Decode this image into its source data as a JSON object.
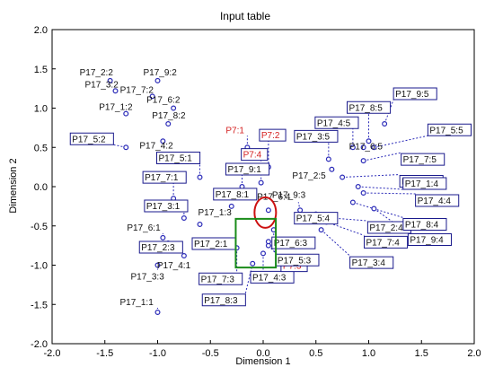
{
  "chart_data": {
    "type": "scatter",
    "title": "Input table",
    "xlabel": "Dimension 1",
    "ylabel": "Dimension 2",
    "xlim": [
      -2.0,
      2.0
    ],
    "ylim": [
      -2.0,
      2.0
    ],
    "xticks": [
      "-2.0",
      "-1.5",
      "-1.0",
      "-0.5",
      "0.0",
      "0.5",
      "1.0",
      "1.5",
      "2.0"
    ],
    "yticks": [
      "2.0",
      "1.5",
      "1.0",
      "0.5",
      "0.0",
      "-0.5",
      "-1.0",
      "-1.5",
      "-2.0"
    ],
    "grid": false,
    "colors": {
      "point": "#2b2bb8",
      "label_box": "#1a1a8c",
      "highlight_label": "#d42020",
      "leader": "#2b2bb8",
      "ellipse": "#cc1111",
      "rectangle": "#1a8c1a"
    },
    "points": [
      {
        "label": "P17_2:2",
        "x": -1.45,
        "y": 1.35,
        "boxed": false,
        "red": false
      },
      {
        "label": "P17_9:2",
        "x": -1.0,
        "y": 1.35,
        "boxed": false,
        "red": false
      },
      {
        "label": "P17_3:2",
        "x": -1.4,
        "y": 1.22,
        "boxed": false,
        "red": false
      },
      {
        "label": "P17_7:2",
        "x": -1.05,
        "y": 1.15,
        "boxed": false,
        "red": false
      },
      {
        "label": "P17_1:2",
        "x": -1.3,
        "y": 0.93,
        "boxed": false,
        "red": false
      },
      {
        "label": "P17_6:2",
        "x": -0.85,
        "y": 1.0,
        "boxed": false,
        "red": false
      },
      {
        "label": "P17_8:2",
        "x": -0.9,
        "y": 0.8,
        "boxed": false,
        "red": false
      },
      {
        "label": "P17_5:2",
        "x": -1.3,
        "y": 0.5,
        "boxed": true,
        "red": false
      },
      {
        "label": "P17_4:2",
        "x": -0.95,
        "y": 0.58,
        "boxed": false,
        "red": false
      },
      {
        "label": "P7:1",
        "x": -0.15,
        "y": 0.5,
        "boxed": false,
        "red": true
      },
      {
        "label": "P7:2",
        "x": 0.05,
        "y": 0.25,
        "boxed": true,
        "red": true
      },
      {
        "label": "P7:4",
        "x": -0.02,
        "y": 0.05,
        "boxed": true,
        "red": true
      },
      {
        "label": "P17_5:1",
        "x": -0.6,
        "y": 0.12,
        "boxed": true,
        "red": false
      },
      {
        "label": "P17_9:1",
        "x": -0.2,
        "y": 0.0,
        "boxed": true,
        "red": false
      },
      {
        "label": "P17_7:1",
        "x": -0.85,
        "y": -0.15,
        "boxed": true,
        "red": false
      },
      {
        "label": "P17_8:1",
        "x": -0.3,
        "y": -0.25,
        "boxed": true,
        "red": false
      },
      {
        "label": "P17_3:1",
        "x": -0.75,
        "y": -0.4,
        "boxed": true,
        "red": false
      },
      {
        "label": "P17_1:3",
        "x": -0.6,
        "y": -0.48,
        "boxed": false,
        "red": false
      },
      {
        "label": "P17_9:3",
        "x": 0.05,
        "y": -0.3,
        "boxed": false,
        "red": false
      },
      {
        "label": "P17_6:1",
        "x": -0.95,
        "y": -0.65,
        "boxed": false,
        "red": false
      },
      {
        "label": "P17_2:3",
        "x": -0.9,
        "y": -0.72,
        "boxed": true,
        "red": false
      },
      {
        "label": "P17_2:1",
        "x": -0.4,
        "y": -0.72,
        "boxed": true,
        "red": false
      },
      {
        "label": "P17_4:1",
        "x": -0.75,
        "y": -0.88,
        "boxed": false,
        "red": false
      },
      {
        "label": "P17_3:3",
        "x": -1.0,
        "y": -1.0,
        "boxed": false,
        "red": false
      },
      {
        "label": "P17_1:1",
        "x": -1.0,
        "y": -1.6,
        "boxed": false,
        "red": false
      },
      {
        "label": "P17_7:3",
        "x": -0.25,
        "y": -0.78,
        "boxed": true,
        "red": false
      },
      {
        "label": "P17_8:3",
        "x": -0.1,
        "y": -0.98,
        "boxed": true,
        "red": false
      },
      {
        "label": "P17_4:3",
        "x": 0.0,
        "y": -0.85,
        "boxed": true,
        "red": false
      },
      {
        "label": "P7:3",
        "x": 0.05,
        "y": -0.75,
        "boxed": true,
        "red": true
      },
      {
        "label": "P17_6:3",
        "x": 0.1,
        "y": -0.55,
        "boxed": true,
        "red": false
      },
      {
        "label": "P17_5:3",
        "x": 0.05,
        "y": -0.7,
        "boxed": true,
        "red": false
      },
      {
        "label": "P17_6:4",
        "x": 0.35,
        "y": -0.3,
        "boxed": false,
        "red": false
      },
      {
        "label": "P17_5:4",
        "x": 0.5,
        "y": -0.35,
        "boxed": true,
        "red": false
      },
      {
        "label": "P17_2:4",
        "x": 0.65,
        "y": -0.4,
        "boxed": true,
        "red": false
      },
      {
        "label": "P17_7:4",
        "x": 0.6,
        "y": -0.45,
        "boxed": true,
        "red": false
      },
      {
        "label": "P17_3:4",
        "x": 0.55,
        "y": -0.55,
        "boxed": true,
        "red": false
      },
      {
        "label": "P17_2:5",
        "x": 0.65,
        "y": 0.22,
        "boxed": false,
        "red": false
      },
      {
        "label": "P17_3:5",
        "x": 0.62,
        "y": 0.35,
        "boxed": true,
        "red": false
      },
      {
        "label": "P17_4:5",
        "x": 0.85,
        "y": 0.5,
        "boxed": true,
        "red": false
      },
      {
        "label": "P17_8:5",
        "x": 1.0,
        "y": 0.58,
        "boxed": true,
        "red": false
      },
      {
        "label": "P17_9:5",
        "x": 1.15,
        "y": 0.8,
        "boxed": true,
        "red": false
      },
      {
        "label": "P17_5:5",
        "x": 1.05,
        "y": 0.5,
        "boxed": true,
        "red": false
      },
      {
        "label": "P17_6:5",
        "x": 0.95,
        "y": 0.5,
        "boxed": false,
        "red": false
      },
      {
        "label": "P17_7:5",
        "x": 0.95,
        "y": 0.33,
        "boxed": true,
        "red": false
      },
      {
        "label": "P17_1:5",
        "x": 0.75,
        "y": 0.12,
        "boxed": true,
        "red": false
      },
      {
        "label": "P17_1:4",
        "x": 0.9,
        "y": 0.0,
        "boxed": true,
        "red": false
      },
      {
        "label": "P17_4:4",
        "x": 0.95,
        "y": -0.08,
        "boxed": true,
        "red": false
      },
      {
        "label": "P17_8:4",
        "x": 0.85,
        "y": -0.2,
        "boxed": true,
        "red": false
      },
      {
        "label": "P17_9:4",
        "x": 1.05,
        "y": -0.28,
        "boxed": true,
        "red": false
      }
    ]
  }
}
